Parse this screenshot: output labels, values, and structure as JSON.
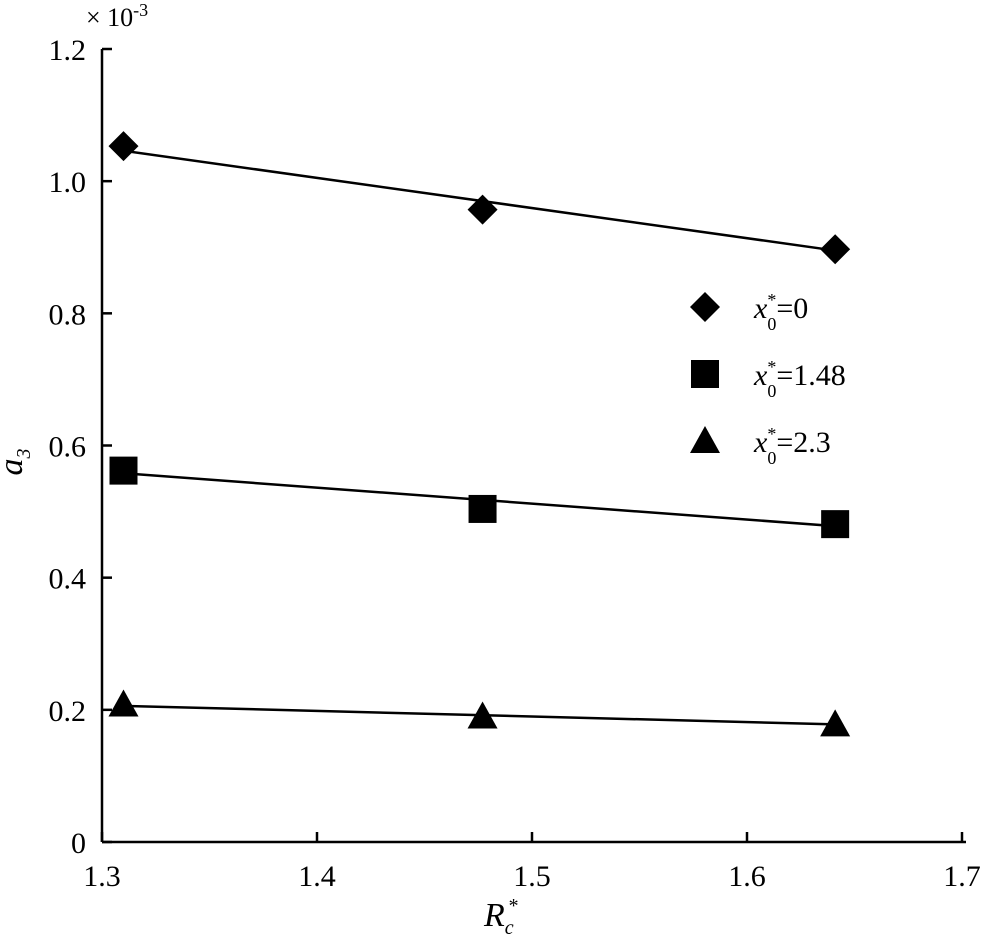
{
  "chart_data": {
    "type": "scatter",
    "multiplier": "× 10-3",
    "multiplier_base": "× 10",
    "multiplier_exp": "-3",
    "xlabel_main": "R",
    "xlabel_sub": "c",
    "xlabel_sup": "*",
    "ylabel_main": "a",
    "ylabel_sub": "3",
    "xlim": [
      1.3,
      1.7
    ],
    "ylim": [
      0,
      1.2
    ],
    "xticks": [
      "1.3",
      "1.4",
      "1.5",
      "1.6",
      "1.7"
    ],
    "yticks": [
      "0",
      "0.2",
      "0.4",
      "0.6",
      "0.8",
      "1.0",
      "1.2"
    ],
    "x": [
      1.31,
      1.477,
      1.641
    ],
    "series": [
      {
        "name": "x0*=0",
        "label_var": "x",
        "label_sup": "*",
        "label_sub": "0",
        "label_eq": "=0",
        "marker": "diamond",
        "values": [
          1.053,
          0.957,
          0.897
        ],
        "fit": [
          1.046,
          0.895
        ]
      },
      {
        "name": "x0*=1.48",
        "label_var": "x",
        "label_sup": "*",
        "label_sub": "0",
        "label_eq": "=1.48",
        "marker": "square",
        "values": [
          0.562,
          0.504,
          0.481
        ],
        "fit": [
          0.558,
          0.478
        ]
      },
      {
        "name": "x0*=2.3",
        "label_var": "x",
        "label_sup": "*",
        "label_sub": "0",
        "label_eq": "=2.3",
        "marker": "triangle",
        "values": [
          0.208,
          0.19,
          0.178
        ],
        "fit": [
          0.206,
          0.178
        ]
      }
    ],
    "legend_position": "right-middle",
    "grid": false,
    "color": "#000000"
  }
}
